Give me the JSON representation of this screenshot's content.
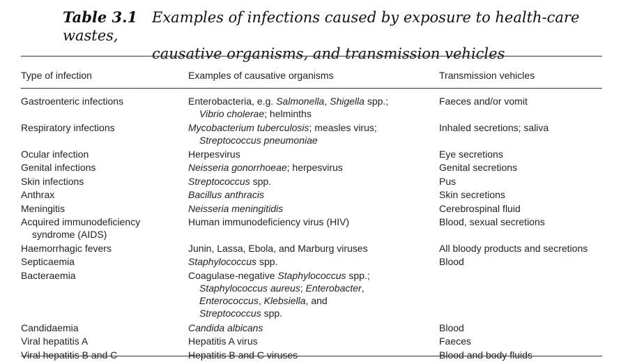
{
  "caption": {
    "label": "Table 3.1",
    "line1": "Examples of infections caused by exposure to health-care wastes,",
    "line2": "causative organisms, and transmission vehicles"
  },
  "headers": {
    "type": "Type of infection",
    "organisms": "Examples of causative organisms",
    "vehicles": "Transmission vehicles"
  },
  "rows": [
    {
      "type": [
        "Gastroenteric infections"
      ],
      "organisms": [
        [
          {
            "t": "Enterobacteria, e.g. ",
            "i": false
          },
          {
            "t": "Salmonella",
            "i": true
          },
          {
            "t": ", ",
            "i": false
          },
          {
            "t": "Shigella",
            "i": true
          },
          {
            "t": " spp.;",
            "i": false
          }
        ],
        [
          {
            "t": "Vibrio cholerae",
            "i": true
          },
          {
            "t": "; helminths",
            "i": false
          }
        ]
      ],
      "vehicles": [
        "Faeces and/or vomit"
      ]
    },
    {
      "type": [
        "Respiratory infections"
      ],
      "organisms": [
        [
          {
            "t": "Mycobacterium tuberculosis",
            "i": true
          },
          {
            "t": "; measles virus;",
            "i": false
          }
        ],
        [
          {
            "t": "Streptococcus pneumoniae",
            "i": true
          }
        ]
      ],
      "vehicles": [
        "Inhaled secretions; saliva"
      ]
    },
    {
      "type": [
        "Ocular infection"
      ],
      "organisms": [
        [
          {
            "t": "Herpesvirus",
            "i": false
          }
        ]
      ],
      "vehicles": [
        "Eye secretions"
      ]
    },
    {
      "type": [
        "Genital infections"
      ],
      "organisms": [
        [
          {
            "t": "Neisseria gonorrhoeae",
            "i": true
          },
          {
            "t": "; herpesvirus",
            "i": false
          }
        ]
      ],
      "vehicles": [
        "Genital secretions"
      ]
    },
    {
      "type": [
        "Skin infections"
      ],
      "organisms": [
        [
          {
            "t": "Streptococcus",
            "i": true
          },
          {
            "t": " spp.",
            "i": false
          }
        ]
      ],
      "vehicles": [
        "Pus"
      ]
    },
    {
      "type": [
        "Anthrax"
      ],
      "organisms": [
        [
          {
            "t": "Bacillus anthracis",
            "i": true
          }
        ]
      ],
      "vehicles": [
        "Skin secretions"
      ]
    },
    {
      "type": [
        "Meningitis"
      ],
      "organisms": [
        [
          {
            "t": "Neisseria meningitidis",
            "i": true
          }
        ]
      ],
      "vehicles": [
        "Cerebrospinal fluid"
      ]
    },
    {
      "type": [
        "Acquired immunodeficiency",
        "syndrome (AIDS)"
      ],
      "organisms": [
        [
          {
            "t": "Human immunodeficiency virus (HIV)",
            "i": false
          }
        ]
      ],
      "vehicles": [
        "Blood, sexual secretions"
      ]
    },
    {
      "type": [
        "Haemorrhagic fevers"
      ],
      "organisms": [
        [
          {
            "t": "Junin, Lassa, Ebola, and Marburg viruses",
            "i": false
          }
        ]
      ],
      "vehicles": [
        "All bloody products and secretions"
      ]
    },
    {
      "type": [
        "Septicaemia"
      ],
      "organisms": [
        [
          {
            "t": "Staphylococcus",
            "i": true
          },
          {
            "t": " spp.",
            "i": false
          }
        ]
      ],
      "vehicles": [
        "Blood"
      ]
    },
    {
      "type": [
        "Bacteraemia"
      ],
      "organisms": [
        [
          {
            "t": "Coagulase-negative ",
            "i": false
          },
          {
            "t": "Staphylococcus",
            "i": true
          },
          {
            "t": " spp.;",
            "i": false
          }
        ],
        [
          {
            "t": "Staphylococcus aureus",
            "i": true
          },
          {
            "t": "; ",
            "i": false
          },
          {
            "t": "Enterobacter",
            "i": true
          },
          {
            "t": ",",
            "i": false
          }
        ],
        [
          {
            "t": "Enterococcus",
            "i": true
          },
          {
            "t": ", ",
            "i": false
          },
          {
            "t": "Klebsiella",
            "i": true
          },
          {
            "t": ", and",
            "i": false
          }
        ],
        [
          {
            "t": "Streptococcus",
            "i": true
          },
          {
            "t": " spp.",
            "i": false
          }
        ]
      ],
      "vehicles": []
    },
    {
      "type": [
        "Candidaemia"
      ],
      "organisms": [
        [
          {
            "t": "Candida albicans",
            "i": true
          }
        ]
      ],
      "vehicles": [
        "Blood"
      ]
    },
    {
      "type": [
        "Viral hepatitis A"
      ],
      "organisms": [
        [
          {
            "t": "Hepatitis A virus",
            "i": false
          }
        ]
      ],
      "vehicles": [
        "Faeces"
      ]
    },
    {
      "type": [
        "Viral hepatitis B and C"
      ],
      "organisms": [
        [
          {
            "t": "Hepatitis B and C viruses",
            "i": false
          }
        ]
      ],
      "vehicles": [
        "Blood and body fluids"
      ]
    }
  ]
}
